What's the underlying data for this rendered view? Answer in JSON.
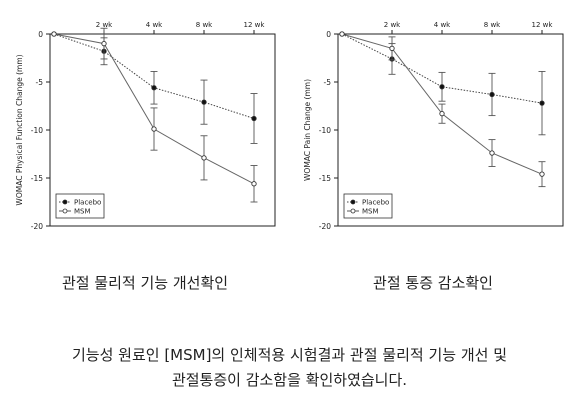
{
  "chart_data": [
    {
      "type": "line",
      "ylabel": "WOMAC Physical Function Change (mm)",
      "xlabel": "",
      "x_tick_labels": [
        "2 wk",
        "4 wk",
        "8 wk",
        "12 wk"
      ],
      "x_positions": [
        0,
        1,
        2,
        3,
        4
      ],
      "ylim": [
        -20,
        0
      ],
      "yticks": [
        0,
        -5,
        -10,
        -15,
        -20
      ],
      "legend_position": "bottom-left",
      "series": [
        {
          "name": "Placebo",
          "marker": "filled-circle",
          "line": "dotted",
          "values": [
            0,
            -1.8,
            -5.6,
            -7.1,
            -8.8
          ],
          "error": [
            0,
            1.4,
            1.7,
            2.3,
            2.6
          ]
        },
        {
          "name": "MSM",
          "marker": "open-circle",
          "line": "solid",
          "values": [
            0,
            -1.0,
            -9.9,
            -12.9,
            -15.6
          ],
          "error": [
            0,
            1.6,
            2.2,
            2.3,
            1.9
          ]
        }
      ]
    },
    {
      "type": "line",
      "ylabel": "WOMAC Pain Change (mm)",
      "xlabel": "",
      "x_tick_labels": [
        "2 wk",
        "4 wk",
        "8 wk",
        "12 wk"
      ],
      "x_positions": [
        0,
        1,
        2,
        3,
        4
      ],
      "ylim": [
        -20,
        0
      ],
      "yticks": [
        0,
        -5,
        -10,
        -15,
        -20
      ],
      "legend_position": "bottom-left",
      "series": [
        {
          "name": "Placebo",
          "marker": "filled-circle",
          "line": "dotted",
          "values": [
            0,
            -2.6,
            -5.5,
            -6.3,
            -7.2
          ],
          "error": [
            0,
            1.6,
            1.5,
            2.2,
            3.3
          ]
        },
        {
          "name": "MSM",
          "marker": "open-circle",
          "line": "solid",
          "values": [
            0,
            -1.5,
            -8.3,
            -12.4,
            -14.6
          ],
          "error": [
            0,
            1.2,
            1.0,
            1.4,
            1.3
          ]
        }
      ]
    }
  ],
  "captions": {
    "left": "관절 물리적 기능 개선확인",
    "right": "관절 통증 감소확인"
  },
  "summary": {
    "line1": "기능성 원료인 [MSM]의 인체적용 시험결과 관절 물리적 기능 개선 및",
    "line2": "관절통증이 감소함을 확인하였습니다."
  }
}
